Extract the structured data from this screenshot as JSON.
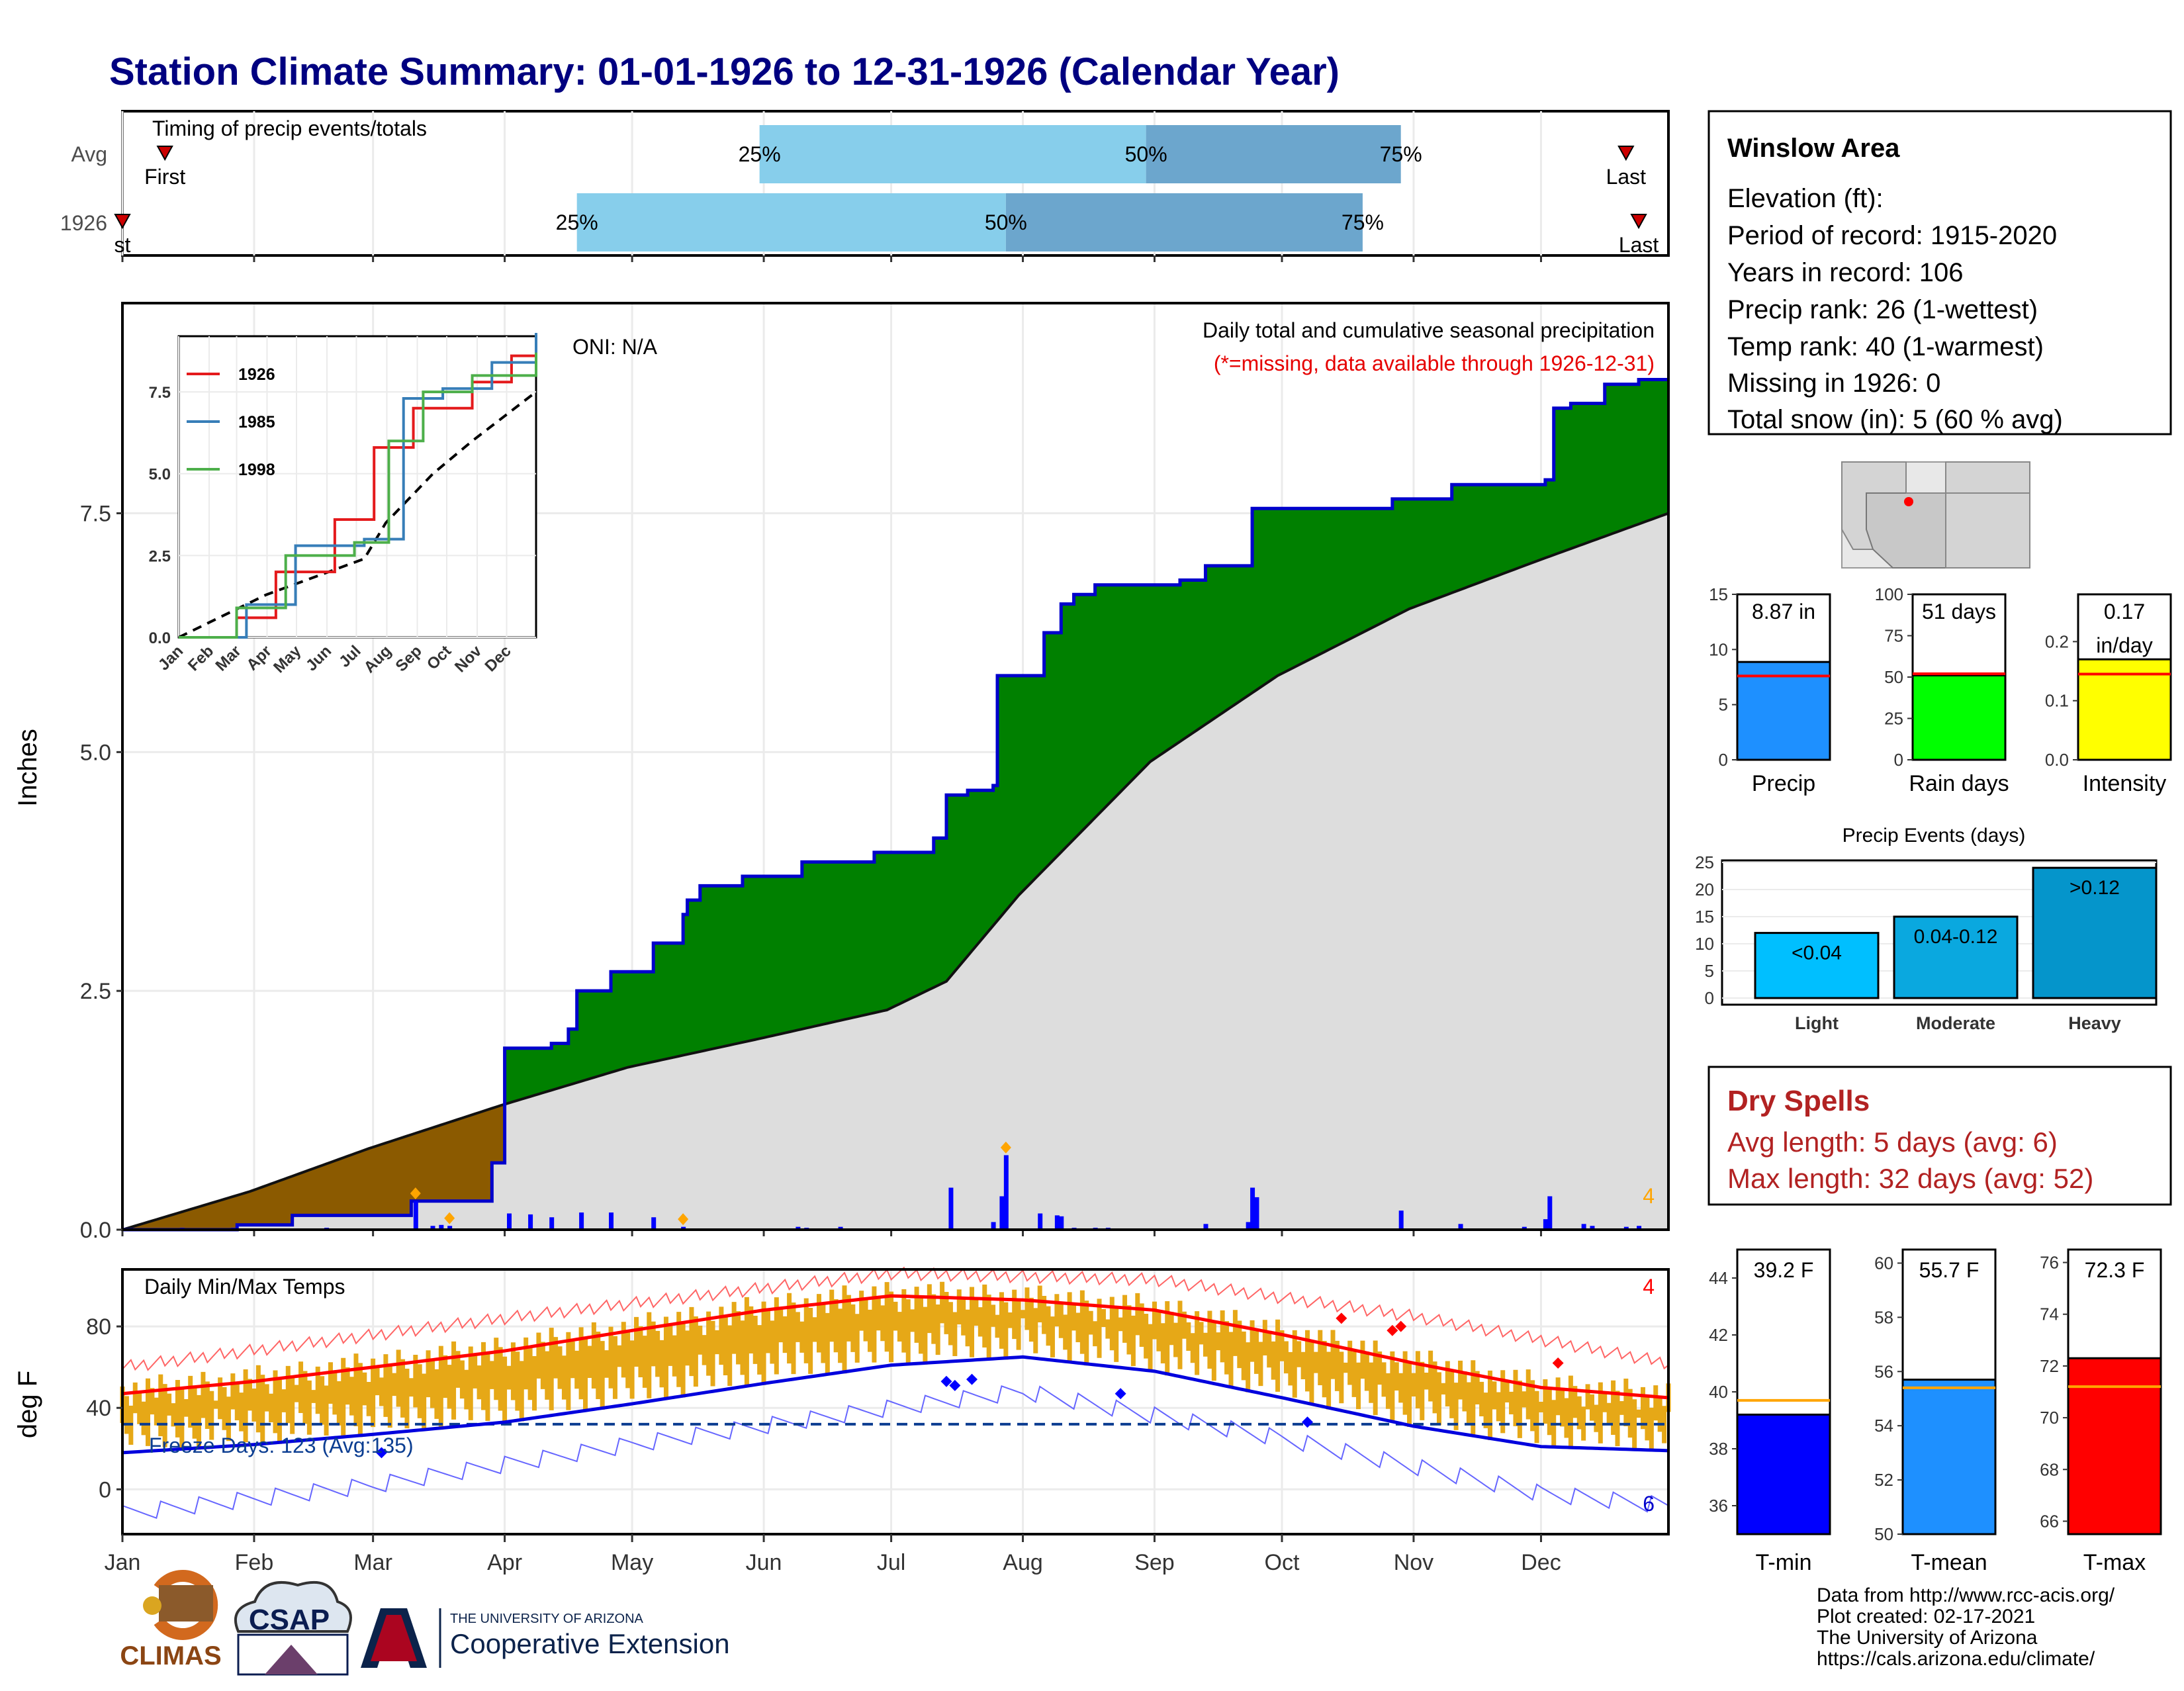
{
  "page_title": "Station Climate Summary: 01-01-1926 to 12-31-1926 (Calendar Year)",
  "months": [
    "Jan",
    "Feb",
    "Mar",
    "Apr",
    "May",
    "Jun",
    "Jul",
    "Aug",
    "Sep",
    "Oct",
    "Nov",
    "Dec"
  ],
  "timing_panel": {
    "label": "Timing of precip events/totals",
    "rows": [
      "Avg",
      "1926"
    ],
    "first_label": "First",
    "last_label": "Last",
    "first_partial": "st",
    "q25": "25%",
    "q50": "50%",
    "q75": "75%",
    "avg": {
      "first_doy": 11,
      "q25_doy": 151,
      "q50_doy": 242,
      "q75_doy": 302,
      "last_doy": 355
    },
    "y1926": {
      "first_doy": 1,
      "q25_doy": 108,
      "q50_doy": 209,
      "q75_doy": 293,
      "last_doy": 358
    }
  },
  "precip_panel": {
    "ylabel": "Inches",
    "yticks": [
      "0.0",
      "2.5",
      "5.0",
      "7.5"
    ],
    "oni": "ONI: N/A",
    "title": "Daily total and cumulative seasonal precipitation",
    "subtitle": "(*=missing, data available through 1926-12-31)",
    "corner_count": "4",
    "colors": {
      "above_avg": "#008000",
      "below_avg": "#8B5A00",
      "avg_fill": "#dddddd",
      "daily_bar": "#0000ff",
      "cum_line": "#0000cc"
    }
  },
  "inset": {
    "legend": [
      "1926",
      "1985",
      "1998"
    ],
    "legend_colors": [
      "#e41a1c",
      "#377eb8",
      "#4daf4a"
    ],
    "yticks": [
      "0.0",
      "2.5",
      "5.0",
      "7.5"
    ],
    "months": [
      "Jan",
      "Feb",
      "Mar",
      "Apr",
      "May",
      "Jun",
      "Jul",
      "Aug",
      "Sep",
      "Oct",
      "Nov",
      "Dec"
    ]
  },
  "temp_panel": {
    "ylabel": "deg F",
    "title": "Daily Min/Max Temps",
    "yticks": [
      "0",
      "40",
      "80"
    ],
    "freeze_label": "Freeze Days: 123 (Avg:135)",
    "max_record_count": "4",
    "min_record_count": "6",
    "colors": {
      "range_bar": "#E6A817",
      "avg_max": "#ff0000",
      "avg_min": "#0000dd"
    }
  },
  "info_box": {
    "station": "Winslow Area",
    "lines": [
      "Elevation (ft):",
      "Period of record: 1915-2020",
      "Years in record: 106",
      "Precip rank: 26 (1-wettest)",
      "Temp rank: 40 (1-warmest)",
      "Missing in 1926: 0",
      "Total snow (in): 5 (60 % avg)"
    ]
  },
  "summary_bars": [
    {
      "label": "Precip",
      "value_text": "8.87 in",
      "value": 8.87,
      "avg": 7.6,
      "yticks": [
        "0",
        "5",
        "10",
        "15"
      ],
      "ymax": 15,
      "color": "#1E90FF"
    },
    {
      "label": "Rain days",
      "value_text": "51 days",
      "value": 51,
      "avg": 52,
      "yticks": [
        "0",
        "25",
        "50",
        "75",
        "100"
      ],
      "ymax": 100,
      "color": "#00ff00"
    },
    {
      "label": "Intensity",
      "value_text": "0.17",
      "value_text2": "in/day",
      "value": 0.17,
      "avg": 0.145,
      "yticks": [
        "0.0",
        "0.1",
        "0.2"
      ],
      "ymax": 0.28,
      "color": "#ffff00"
    }
  ],
  "precip_events": {
    "title": "Precip Events (days)",
    "categories": [
      "Light",
      "Moderate",
      "Heavy"
    ],
    "labels": [
      "<0.04",
      "0.04-0.12",
      ">0.12"
    ],
    "values": [
      12,
      15,
      24
    ],
    "colors": [
      "#00BFFF",
      "#0AA8DF",
      "#0595CB"
    ],
    "yticks": [
      "0",
      "5",
      "10",
      "15",
      "20",
      "25"
    ]
  },
  "dry_spells": {
    "title": "Dry Spells",
    "avg_line": "Avg length: 5 days (avg: 6)",
    "max_line": "Max length: 32 days (avg: 52)"
  },
  "temp_bars": [
    {
      "label": "T-min",
      "value_text": "39.2 F",
      "value": 39.2,
      "avg": 39.7,
      "ymin": 35,
      "ymax": 45,
      "yticks": [
        "36",
        "38",
        "40",
        "42",
        "44"
      ],
      "color": "#0000ff"
    },
    {
      "label": "T-mean",
      "value_text": "55.7 F",
      "value": 55.7,
      "avg": 55.4,
      "ymin": 50,
      "ymax": 60.5,
      "yticks": [
        "50",
        "52",
        "54",
        "56",
        "58",
        "60"
      ],
      "color": "#1E90FF"
    },
    {
      "label": "T-max",
      "value_text": "72.3 F",
      "value": 72.3,
      "avg": 71.2,
      "ymin": 65.5,
      "ymax": 76.5,
      "yticks": [
        "66",
        "68",
        "70",
        "72",
        "74",
        "76"
      ],
      "color": "#ff0000"
    }
  ],
  "footer": {
    "lines": [
      "Data from http://www.rcc-acis.org/",
      "Plot created: 02-17-2021",
      "The University of Arizona",
      "https://cals.arizona.edu/climate/"
    ],
    "climas": "CLIMAS",
    "csap": "CSAP",
    "ua_small": "THE UNIVERSITY OF ARIZONA",
    "ua_big": "Cooperative Extension"
  },
  "chart_data": [
    {
      "type": "area",
      "title": "Daily total and cumulative seasonal precipitation",
      "ylabel": "Inches",
      "ylim": [
        0,
        9.7
      ],
      "cumulative_1926": [
        [
          1,
          0
        ],
        [
          28,
          0.05
        ],
        [
          41,
          0.15
        ],
        [
          69,
          0.3
        ],
        [
          88,
          0.7
        ],
        [
          91,
          0.9
        ],
        [
          91,
          1.9
        ],
        [
          102,
          1.95
        ],
        [
          106,
          2.1
        ],
        [
          108,
          2.5
        ],
        [
          116,
          2.7
        ],
        [
          126,
          3.0
        ],
        [
          133,
          3.3
        ],
        [
          134,
          3.45
        ],
        [
          137,
          3.6
        ],
        [
          147,
          3.7
        ],
        [
          161,
          3.85
        ],
        [
          170,
          3.85
        ],
        [
          178,
          3.95
        ],
        [
          192,
          4.1
        ],
        [
          195,
          4.55
        ],
        [
          200,
          4.6
        ],
        [
          206,
          4.65
        ],
        [
          207,
          5.8
        ],
        [
          216,
          5.8
        ],
        [
          218,
          6.25
        ],
        [
          222,
          6.55
        ],
        [
          225,
          6.65
        ],
        [
          230,
          6.75
        ],
        [
          250,
          6.8
        ],
        [
          256,
          6.95
        ],
        [
          266,
          6.95
        ],
        [
          267,
          7.55
        ],
        [
          300,
          7.65
        ],
        [
          314,
          7.8
        ],
        [
          336,
          7.85
        ],
        [
          338,
          8.6
        ],
        [
          342,
          8.65
        ],
        [
          350,
          8.85
        ],
        [
          358,
          8.9
        ],
        [
          365,
          8.9
        ]
      ],
      "average_cumulative": [
        [
          1,
          0
        ],
        [
          31,
          0.4
        ],
        [
          59,
          0.85
        ],
        [
          90,
          1.3
        ],
        [
          120,
          1.7
        ],
        [
          151,
          2.0
        ],
        [
          181,
          2.3
        ],
        [
          195,
          2.6
        ],
        [
          212,
          3.5
        ],
        [
          243,
          4.9
        ],
        [
          273,
          5.8
        ],
        [
          304,
          6.5
        ],
        [
          334,
          7.0
        ],
        [
          365,
          7.5
        ]
      ],
      "daily_precip": [
        [
          15,
          0.02
        ],
        [
          27,
          0.02
        ],
        [
          49,
          0.02
        ],
        [
          70,
          0.3
        ],
        [
          74,
          0.04
        ],
        [
          76,
          0.05
        ],
        [
          78,
          0.04
        ],
        [
          92,
          0.17
        ],
        [
          97,
          0.16
        ],
        [
          102,
          0.13
        ],
        [
          109,
          0.18
        ],
        [
          116,
          0.18
        ],
        [
          126,
          0.13
        ],
        [
          133,
          0.03
        ],
        [
          160,
          0.03
        ],
        [
          162,
          0.02
        ],
        [
          170,
          0.03
        ],
        [
          196,
          0.44
        ],
        [
          206,
          0.08
        ],
        [
          208,
          0.35
        ],
        [
          209,
          0.78
        ],
        [
          217,
          0.17
        ],
        [
          221,
          0.15
        ],
        [
          222,
          0.14
        ],
        [
          225,
          0.02
        ],
        [
          230,
          0.02
        ],
        [
          233,
          0.02
        ],
        [
          256,
          0.06
        ],
        [
          266,
          0.08
        ],
        [
          267,
          0.44
        ],
        [
          268,
          0.34
        ],
        [
          302,
          0.2
        ],
        [
          316,
          0.06
        ],
        [
          331,
          0.03
        ],
        [
          336,
          0.11
        ],
        [
          337,
          0.35
        ],
        [
          345,
          0.06
        ],
        [
          347,
          0.04
        ],
        [
          355,
          0.03
        ],
        [
          358,
          0.04
        ]
      ]
    },
    {
      "type": "line",
      "title": "Inset cumulative precipitation",
      "series": [
        {
          "name": "1926",
          "points": [
            [
              1,
              0
            ],
            [
              60,
              0.6
            ],
            [
              100,
              2.0
            ],
            [
              160,
              3.6
            ],
            [
              200,
              5.8
            ],
            [
              240,
              7.0
            ],
            [
              300,
              7.8
            ],
            [
              340,
              8.6
            ],
            [
              365,
              8.9
            ]
          ]
        },
        {
          "name": "1985",
          "points": [
            [
              1,
              0
            ],
            [
              70,
              1.0
            ],
            [
              120,
              2.8
            ],
            [
              190,
              3.0
            ],
            [
              230,
              7.3
            ],
            [
              270,
              7.6
            ],
            [
              320,
              8.4
            ],
            [
              365,
              9.3
            ]
          ]
        },
        {
          "name": "1998",
          "points": [
            [
              1,
              0
            ],
            [
              60,
              0.9
            ],
            [
              110,
              2.5
            ],
            [
              180,
              2.9
            ],
            [
              215,
              6.0
            ],
            [
              250,
              7.5
            ],
            [
              300,
              8.0
            ],
            [
              365,
              8.7
            ]
          ]
        }
      ],
      "average": [
        [
          1,
          0
        ],
        [
          90,
          1.3
        ],
        [
          190,
          2.4
        ],
        [
          212,
          3.5
        ],
        [
          260,
          5.0
        ],
        [
          300,
          6.0
        ],
        [
          365,
          7.5
        ]
      ]
    },
    {
      "type": "line",
      "title": "Daily Min/Max Temps",
      "ylabel": "deg F",
      "ylim": [
        -22,
        108
      ],
      "avg_max": [
        [
          1,
          47
        ],
        [
          32,
          53
        ],
        [
          60,
          60
        ],
        [
          91,
          68
        ],
        [
          121,
          78
        ],
        [
          152,
          88
        ],
        [
          182,
          95
        ],
        [
          213,
          93
        ],
        [
          244,
          88
        ],
        [
          274,
          76
        ],
        [
          305,
          62
        ],
        [
          335,
          50
        ],
        [
          365,
          45
        ]
      ],
      "avg_min": [
        [
          1,
          18
        ],
        [
          32,
          22
        ],
        [
          60,
          27
        ],
        [
          91,
          33
        ],
        [
          121,
          42
        ],
        [
          152,
          52
        ],
        [
          182,
          61
        ],
        [
          213,
          65
        ],
        [
          244,
          58
        ],
        [
          274,
          45
        ],
        [
          305,
          31
        ],
        [
          335,
          21
        ],
        [
          365,
          19
        ]
      ],
      "record_max": [
        [
          1,
          60
        ],
        [
          91,
          84
        ],
        [
          182,
          106
        ],
        [
          244,
          103
        ],
        [
          305,
          85
        ],
        [
          365,
          62
        ]
      ],
      "record_min": [
        [
          1,
          -12
        ],
        [
          60,
          2
        ],
        [
          121,
          22
        ],
        [
          182,
          40
        ],
        [
          213,
          48
        ],
        [
          274,
          25
        ],
        [
          335,
          -2
        ],
        [
          365,
          -8
        ]
      ],
      "freeze_threshold": 32
    }
  ]
}
